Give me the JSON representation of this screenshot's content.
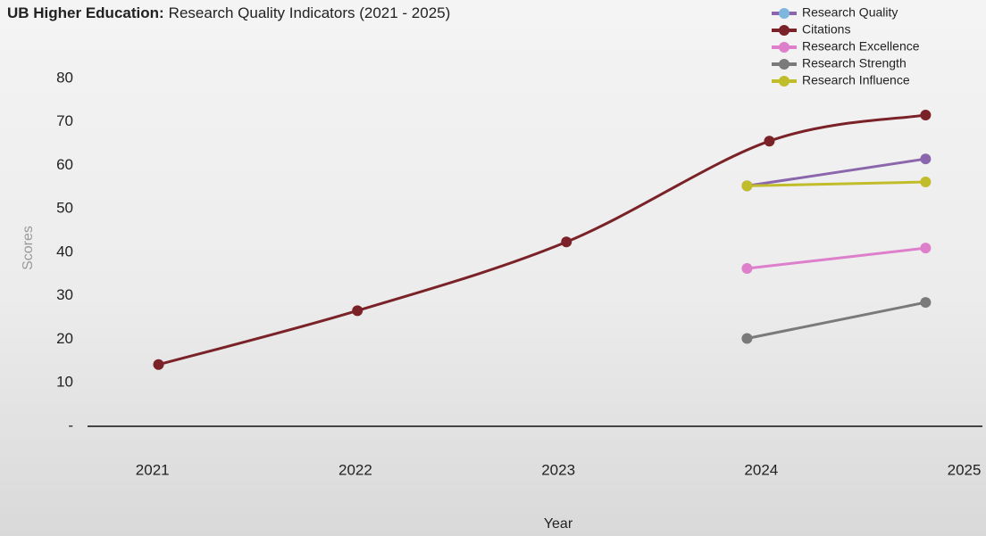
{
  "chart_data": {
    "type": "line",
    "title_bold": "UB Higher Education:",
    "title": "Research Quality Indicators (2021 - 2025)",
    "x_label": "Year",
    "y_label": "Scores",
    "xlim": [
      2020.68,
      2025.09
    ],
    "xticks": [
      2021,
      2022,
      2023,
      2024,
      2025
    ],
    "ylim": [
      0,
      80
    ],
    "yticks": [
      {
        "value": 0,
        "label": "-"
      },
      10,
      20,
      30,
      40,
      50,
      60,
      70,
      80
    ],
    "series": [
      {
        "name": "Research Quality",
        "color": "#8b66ad",
        "marker_color": "#7fb6dd",
        "x": [
          2023.93,
          2024.81
        ],
        "values": [
          55.3,
          61.5
        ]
      },
      {
        "name": "Citations",
        "color": "#7a2228",
        "x": [
          2021.03,
          2022.01,
          2023.04,
          2024.04,
          2024.81
        ],
        "values": [
          14.2,
          26.6,
          42.4,
          65.6,
          71.6
        ]
      },
      {
        "name": "Research Excellence",
        "color": "#de7fcb",
        "x": [
          2023.93,
          2024.81
        ],
        "values": [
          36.3,
          41
        ]
      },
      {
        "name": "Research Strength",
        "color": "#7a7a7a",
        "x": [
          2023.93,
          2024.81
        ],
        "values": [
          20.2,
          28.5
        ]
      },
      {
        "name": "Research Influence",
        "color": "#c1bd2a",
        "x": [
          2023.93,
          2024.81
        ],
        "values": [
          55.3,
          56.2
        ]
      }
    ]
  }
}
